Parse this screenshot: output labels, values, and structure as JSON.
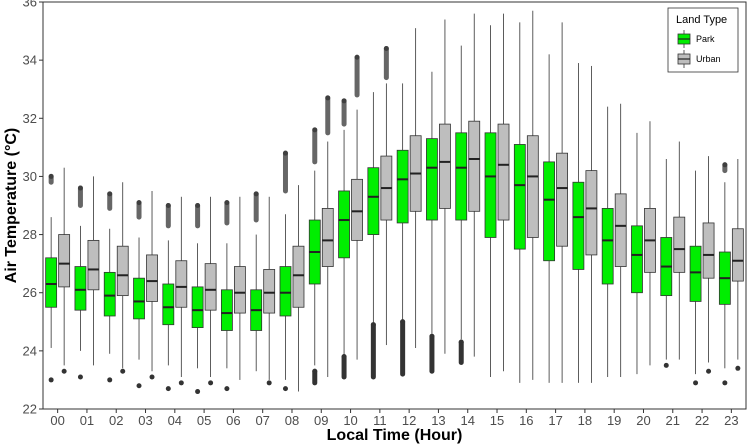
{
  "chart_data": {
    "type": "boxplot",
    "xlabel": "Local Time (Hour)",
    "ylabel": "Air Temperature (°C)",
    "ylim": [
      22,
      36
    ],
    "yticks": [
      22,
      24,
      26,
      28,
      30,
      32,
      34,
      36
    ],
    "grid": false,
    "legend_position": "top-right",
    "legend_title": "Land Type",
    "categories": [
      "00",
      "01",
      "02",
      "03",
      "04",
      "05",
      "06",
      "07",
      "08",
      "09",
      "10",
      "11",
      "12",
      "13",
      "14",
      "15",
      "16",
      "17",
      "18",
      "19",
      "20",
      "21",
      "22",
      "23"
    ],
    "series": [
      {
        "name": "Park",
        "color": "#00ee00",
        "boxes": [
          {
            "q1": 25.5,
            "median": 26.3,
            "q3": 27.2,
            "whisker_low": 24.1,
            "whisker_high": 28.6,
            "outliers_low": [
              23.0
            ],
            "outliers_high": [
              29.8,
              30.0
            ]
          },
          {
            "q1": 25.4,
            "median": 26.1,
            "q3": 26.9,
            "whisker_low": 24.0,
            "whisker_high": 28.3,
            "outliers_low": [
              23.1
            ],
            "outliers_high": [
              29.0,
              29.6
            ]
          },
          {
            "q1": 25.2,
            "median": 25.9,
            "q3": 26.7,
            "whisker_low": 23.9,
            "whisker_high": 28.2,
            "outliers_low": [
              23.0
            ],
            "outliers_high": [
              28.9,
              29.4
            ]
          },
          {
            "q1": 25.1,
            "median": 25.7,
            "q3": 26.5,
            "whisker_low": 23.7,
            "whisker_high": 27.9,
            "outliers_low": [
              22.8
            ],
            "outliers_high": [
              28.6,
              29.1
            ]
          },
          {
            "q1": 24.9,
            "median": 25.5,
            "q3": 26.3,
            "whisker_low": 23.5,
            "whisker_high": 27.8,
            "outliers_low": [
              22.7
            ],
            "outliers_high": [
              28.3,
              29.0
            ]
          },
          {
            "q1": 24.8,
            "median": 25.4,
            "q3": 26.2,
            "whisker_low": 23.4,
            "whisker_high": 27.7,
            "outliers_low": [
              22.6
            ],
            "outliers_high": [
              28.3,
              29.0
            ]
          },
          {
            "q1": 24.7,
            "median": 25.3,
            "q3": 26.1,
            "whisker_low": 23.4,
            "whisker_high": 27.7,
            "outliers_low": [
              22.7
            ],
            "outliers_high": [
              28.4,
              29.1
            ]
          },
          {
            "q1": 24.7,
            "median": 25.4,
            "q3": 26.1,
            "whisker_low": 23.3,
            "whisker_high": 28.0,
            "outliers_low": [],
            "outliers_high": [
              28.5,
              29.4
            ]
          },
          {
            "q1": 25.2,
            "median": 26.0,
            "q3": 26.9,
            "whisker_low": 23.0,
            "whisker_high": 28.7,
            "outliers_low": [
              22.7
            ],
            "outliers_high": [
              29.5,
              30.8
            ]
          },
          {
            "q1": 26.3,
            "median": 27.4,
            "q3": 28.5,
            "whisker_low": 23.5,
            "whisker_high": 30.2,
            "outliers_low": [
              22.9,
              23.3
            ],
            "outliers_high": [
              30.5,
              31.6
            ]
          },
          {
            "q1": 27.2,
            "median": 28.5,
            "q3": 29.5,
            "whisker_low": 23.8,
            "whisker_high": 31.6,
            "outliers_low": [
              23.1,
              23.8
            ],
            "outliers_high": [
              31.8,
              32.6
            ]
          },
          {
            "q1": 28.0,
            "median": 29.3,
            "q3": 30.3,
            "whisker_low": 24.9,
            "whisker_high": 32.9,
            "outliers_low": [
              23.1,
              24.9
            ],
            "outliers_high": []
          },
          {
            "q1": 28.4,
            "median": 29.9,
            "q3": 30.9,
            "whisker_low": 25.0,
            "whisker_high": 33.2,
            "outliers_low": [
              23.2,
              25.0
            ],
            "outliers_high": []
          },
          {
            "q1": 28.5,
            "median": 30.3,
            "q3": 31.3,
            "whisker_low": 24.5,
            "whisker_high": 33.6,
            "outliers_low": [
              23.3,
              24.5
            ],
            "outliers_high": []
          },
          {
            "q1": 28.5,
            "median": 30.3,
            "q3": 31.5,
            "whisker_low": 24.4,
            "whisker_high": 34.5,
            "outliers_low": [
              23.6,
              24.3
            ],
            "outliers_high": []
          },
          {
            "q1": 27.9,
            "median": 30.0,
            "q3": 31.5,
            "whisker_low": 23.1,
            "whisker_high": 35.2,
            "outliers_low": [],
            "outliers_high": []
          },
          {
            "q1": 27.5,
            "median": 29.7,
            "q3": 31.1,
            "whisker_low": 22.9,
            "whisker_high": 35.3,
            "outliers_low": [],
            "outliers_high": []
          },
          {
            "q1": 27.1,
            "median": 29.2,
            "q3": 30.5,
            "whisker_low": 22.9,
            "whisker_high": 34.2,
            "outliers_low": [],
            "outliers_high": []
          },
          {
            "q1": 26.8,
            "median": 28.6,
            "q3": 29.8,
            "whisker_low": 22.9,
            "whisker_high": 33.9,
            "outliers_low": [],
            "outliers_high": []
          },
          {
            "q1": 26.3,
            "median": 27.8,
            "q3": 28.9,
            "whisker_low": 23.1,
            "whisker_high": 32.4,
            "outliers_low": [],
            "outliers_high": []
          },
          {
            "q1": 26.0,
            "median": 27.3,
            "q3": 28.3,
            "whisker_low": 23.2,
            "whisker_high": 31.5,
            "outliers_low": [],
            "outliers_high": []
          },
          {
            "q1": 25.9,
            "median": 26.9,
            "q3": 27.9,
            "whisker_low": 23.7,
            "whisker_high": 30.6,
            "outliers_low": [
              23.5
            ],
            "outliers_high": []
          },
          {
            "q1": 25.7,
            "median": 26.7,
            "q3": 27.6,
            "whisker_low": 23.2,
            "whisker_high": 30.2,
            "outliers_low": [
              22.9
            ],
            "outliers_high": []
          },
          {
            "q1": 25.6,
            "median": 26.5,
            "q3": 27.4,
            "whisker_low": 23.4,
            "whisker_high": 29.8,
            "outliers_low": [
              22.9
            ],
            "outliers_high": [
              30.2,
              30.4
            ]
          }
        ]
      },
      {
        "name": "Urban",
        "color": "#bebebe",
        "boxes": [
          {
            "q1": 26.2,
            "median": 27.0,
            "q3": 28.0,
            "whisker_low": 23.5,
            "whisker_high": 30.3,
            "outliers_low": [
              23.3
            ],
            "outliers_high": []
          },
          {
            "q1": 26.1,
            "median": 26.8,
            "q3": 27.8,
            "whisker_low": 23.5,
            "whisker_high": 30.0,
            "outliers_low": [],
            "outliers_high": []
          },
          {
            "q1": 25.9,
            "median": 26.6,
            "q3": 27.6,
            "whisker_low": 23.4,
            "whisker_high": 29.8,
            "outliers_low": [
              23.3
            ],
            "outliers_high": []
          },
          {
            "q1": 25.7,
            "median": 26.4,
            "q3": 27.3,
            "whisker_low": 23.3,
            "whisker_high": 29.5,
            "outliers_low": [
              23.1
            ],
            "outliers_high": []
          },
          {
            "q1": 25.5,
            "median": 26.2,
            "q3": 27.1,
            "whisker_low": 23.1,
            "whisker_high": 29.3,
            "outliers_low": [
              22.9
            ],
            "outliers_high": []
          },
          {
            "q1": 25.4,
            "median": 26.1,
            "q3": 27.0,
            "whisker_low": 23.1,
            "whisker_high": 29.3,
            "outliers_low": [
              22.9
            ],
            "outliers_high": []
          },
          {
            "q1": 25.3,
            "median": 26.0,
            "q3": 26.9,
            "whisker_low": 23.0,
            "whisker_high": 29.3,
            "outliers_low": [],
            "outliers_high": []
          },
          {
            "q1": 25.3,
            "median": 26.0,
            "q3": 26.8,
            "whisker_low": 23.0,
            "whisker_high": 29.3,
            "outliers_low": [
              22.9
            ],
            "outliers_high": []
          },
          {
            "q1": 25.5,
            "median": 26.6,
            "q3": 27.6,
            "whisker_low": 22.6,
            "whisker_high": 29.7,
            "outliers_low": [],
            "outliers_high": []
          },
          {
            "q1": 26.9,
            "median": 27.8,
            "q3": 28.9,
            "whisker_low": 23.1,
            "whisker_high": 31.2,
            "outliers_low": [],
            "outliers_high": [
              31.5,
              32.7
            ]
          },
          {
            "q1": 27.8,
            "median": 28.8,
            "q3": 29.9,
            "whisker_low": 23.7,
            "whisker_high": 32.3,
            "outliers_low": [],
            "outliers_high": [
              32.8,
              34.1
            ]
          },
          {
            "q1": 28.5,
            "median": 29.6,
            "q3": 30.7,
            "whisker_low": 24.2,
            "whisker_high": 33.2,
            "outliers_low": [],
            "outliers_high": [
              33.4,
              34.4
            ]
          },
          {
            "q1": 28.8,
            "median": 30.1,
            "q3": 31.4,
            "whisker_low": 24.1,
            "whisker_high": 35.1,
            "outliers_low": [],
            "outliers_high": []
          },
          {
            "q1": 28.9,
            "median": 30.5,
            "q3": 31.8,
            "whisker_low": 23.9,
            "whisker_high": 35.4,
            "outliers_low": [],
            "outliers_high": []
          },
          {
            "q1": 28.8,
            "median": 30.6,
            "q3": 31.9,
            "whisker_low": 23.8,
            "whisker_high": 35.6,
            "outliers_low": [],
            "outliers_high": []
          },
          {
            "q1": 28.5,
            "median": 30.4,
            "q3": 31.8,
            "whisker_low": 23.3,
            "whisker_high": 35.6,
            "outliers_low": [],
            "outliers_high": []
          },
          {
            "q1": 27.9,
            "median": 30.0,
            "q3": 31.4,
            "whisker_low": 23.0,
            "whisker_high": 35.7,
            "outliers_low": [],
            "outliers_high": []
          },
          {
            "q1": 27.6,
            "median": 29.6,
            "q3": 30.8,
            "whisker_low": 22.9,
            "whisker_high": 35.3,
            "outliers_low": [],
            "outliers_high": []
          },
          {
            "q1": 27.3,
            "median": 28.9,
            "q3": 30.2,
            "whisker_low": 22.9,
            "whisker_high": 33.8,
            "outliers_low": [],
            "outliers_high": []
          },
          {
            "q1": 26.9,
            "median": 28.3,
            "q3": 29.4,
            "whisker_low": 23.1,
            "whisker_high": 32.5,
            "outliers_low": [],
            "outliers_high": []
          },
          {
            "q1": 26.7,
            "median": 27.8,
            "q3": 28.9,
            "whisker_low": 23.5,
            "whisker_high": 31.9,
            "outliers_low": [],
            "outliers_high": []
          },
          {
            "q1": 26.7,
            "median": 27.5,
            "q3": 28.6,
            "whisker_low": 23.7,
            "whisker_high": 31.2,
            "outliers_low": [],
            "outliers_high": []
          },
          {
            "q1": 26.5,
            "median": 27.3,
            "q3": 28.4,
            "whisker_low": 23.6,
            "whisker_high": 30.7,
            "outliers_low": [
              23.3
            ],
            "outliers_high": []
          },
          {
            "q1": 26.4,
            "median": 27.1,
            "q3": 28.2,
            "whisker_low": 23.7,
            "whisker_high": 30.6,
            "outliers_low": [
              23.4
            ],
            "outliers_high": []
          }
        ]
      }
    ]
  }
}
